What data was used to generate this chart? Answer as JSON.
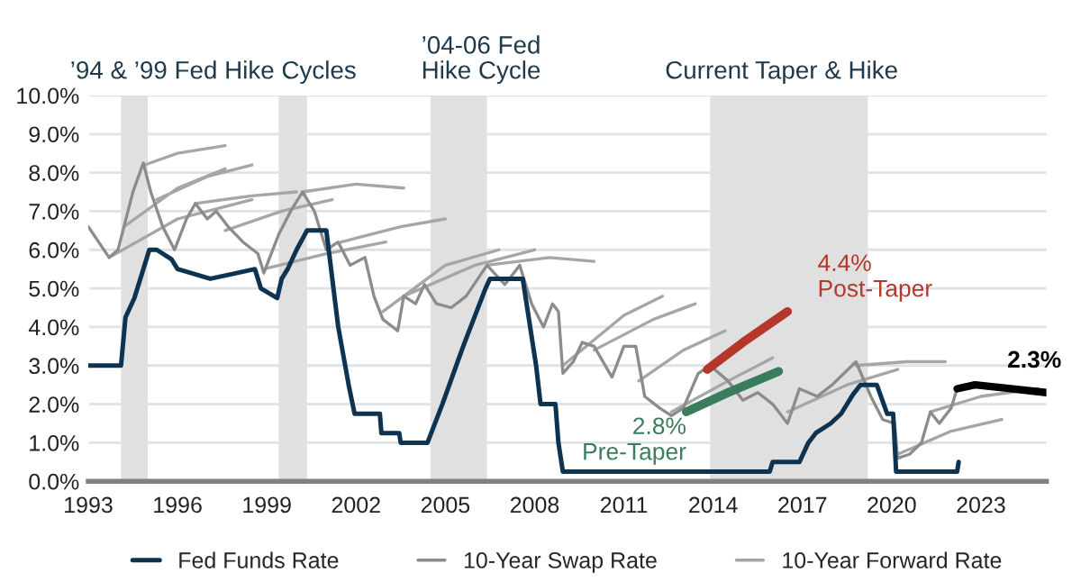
{
  "chart_data": {
    "type": "line",
    "xlim": [
      1993,
      2025.2
    ],
    "xticks": [
      1993,
      1996,
      1999,
      2002,
      2005,
      2008,
      2011,
      2014,
      2017,
      2020,
      2023
    ],
    "ylim": [
      0,
      10
    ],
    "yticks": [
      {
        "value": 0,
        "label": "0.0%"
      },
      {
        "value": 1,
        "label": "1.0%"
      },
      {
        "value": 2,
        "label": "2.0%"
      },
      {
        "value": 3,
        "label": "3.0%"
      },
      {
        "value": 4,
        "label": "4.0%"
      },
      {
        "value": 5,
        "label": "5.0%"
      },
      {
        "value": 6,
        "label": "6.0%"
      },
      {
        "value": 7,
        "label": "7.0%"
      },
      {
        "value": 8,
        "label": "8.0%"
      },
      {
        "value": 9,
        "label": "9.0%"
      },
      {
        "value": 10,
        "label": "10.0%"
      }
    ],
    "grid": "y",
    "legend": "bottom",
    "bands": [
      {
        "axis": "x",
        "from": 1994.1,
        "to": 1995.0,
        "color": "#e0e0e0"
      },
      {
        "axis": "x",
        "from": 1999.4,
        "to": 2000.35,
        "color": "#e0e0e0"
      },
      {
        "axis": "x",
        "from": 2004.5,
        "to": 2006.4,
        "color": "#e0e0e0"
      },
      {
        "axis": "x",
        "from": 2013.9,
        "to": 2019.2,
        "color": "#e0e0e0"
      }
    ],
    "annotations": [
      "’94 & ’99 Fed Hike Cycles",
      "’04-06 Fed\nHike Cycle",
      "Current Taper & Hike",
      {
        "text": "4.4%\nPost-Taper",
        "x": 2016.5,
        "y": 4.4
      },
      {
        "text": "2.8%\nPre-Taper",
        "x": 2013.1,
        "y": 1.8
      },
      {
        "text": "2.3%",
        "x": 2025.2,
        "y": 2.3
      }
    ],
    "series": [
      {
        "name": "Fed Funds Rate",
        "color": "#0d3351",
        "x": [
          1993.0,
          1994.1,
          1994.25,
          1994.55,
          1994.85,
          1995.05,
          1995.3,
          1995.8,
          1996.0,
          1997.1,
          1998.6,
          1998.8,
          1999.35,
          1999.5,
          1999.7,
          2000.0,
          2000.35,
          2001.0,
          2001.4,
          2001.75,
          2001.95,
          2002.8,
          2002.85,
          2003.45,
          2003.5,
          2004.4,
          2004.9,
          2005.6,
          2006.35,
          2006.5,
          2007.6,
          2008.05,
          2008.2,
          2008.7,
          2008.8,
          2008.95,
          2015.9,
          2016.0,
          2016.9,
          2017.2,
          2017.45,
          2017.95,
          2018.3,
          2018.7,
          2018.95,
          2019.5,
          2019.85,
          2020.05,
          2020.15,
          2022.2,
          2022.25
        ],
        "values": [
          3.0,
          3.0,
          4.25,
          4.75,
          5.5,
          6.0,
          6.0,
          5.75,
          5.5,
          5.25,
          5.5,
          5.0,
          4.75,
          5.25,
          5.5,
          6.0,
          6.5,
          6.5,
          4.0,
          2.5,
          1.75,
          1.75,
          1.25,
          1.25,
          1.0,
          1.0,
          2.0,
          3.5,
          5.0,
          5.25,
          5.25,
          3.0,
          2.0,
          2.0,
          1.0,
          0.25,
          0.25,
          0.5,
          0.5,
          1.0,
          1.25,
          1.5,
          1.75,
          2.25,
          2.5,
          2.5,
          1.75,
          1.75,
          0.25,
          0.25,
          0.5
        ]
      },
      {
        "name": "10-Year Swap Rate",
        "color": "#8c8c8c",
        "x": [
          1993.0,
          1993.7,
          1994.0,
          1994.5,
          1994.85,
          1995.1,
          1995.5,
          1995.9,
          1996.3,
          1996.6,
          1997.0,
          1997.3,
          1997.7,
          1998.2,
          1998.7,
          1998.9,
          1999.4,
          1999.8,
          2000.2,
          2000.6,
          2001.0,
          2001.4,
          2001.8,
          2002.3,
          2002.6,
          2002.9,
          2003.4,
          2003.6,
          2004.0,
          2004.3,
          2004.7,
          2005.2,
          2005.7,
          2006.4,
          2007.0,
          2007.5,
          2007.9,
          2008.3,
          2008.6,
          2008.8,
          2008.95,
          2009.3,
          2009.6,
          2010.0,
          2010.6,
          2011.0,
          2011.4,
          2011.7,
          2012.2,
          2012.6,
          2013.0,
          2013.5,
          2013.9,
          2014.5,
          2015.0,
          2015.5,
          2016.0,
          2016.5,
          2016.9,
          2017.5,
          2018.0,
          2018.8,
          2019.3,
          2019.7,
          2020.1,
          2020.2,
          2020.6,
          2021.0,
          2021.3,
          2021.6,
          2022.0,
          2022.2
        ],
        "values": [
          6.6,
          5.8,
          6.0,
          7.5,
          8.25,
          7.5,
          6.6,
          6.0,
          6.8,
          7.2,
          6.8,
          7.0,
          6.6,
          6.2,
          5.9,
          5.4,
          6.4,
          7.0,
          7.5,
          7.0,
          6.0,
          6.2,
          5.6,
          5.8,
          4.8,
          4.2,
          3.9,
          4.8,
          4.6,
          5.1,
          4.6,
          4.5,
          4.8,
          5.6,
          5.1,
          5.6,
          4.6,
          4.0,
          4.6,
          4.4,
          2.8,
          3.1,
          3.6,
          3.5,
          2.7,
          3.5,
          3.5,
          2.2,
          1.9,
          1.7,
          1.9,
          2.8,
          3.0,
          2.6,
          2.1,
          2.3,
          2.0,
          1.5,
          2.4,
          2.2,
          2.5,
          3.1,
          2.2,
          1.6,
          1.5,
          0.6,
          0.7,
          1.0,
          1.8,
          1.5,
          1.9,
          2.4
        ]
      },
      {
        "name": "10-Year Forward Rate",
        "color": "#a6a6a6",
        "x": [
          1993.7,
          1996,
          1998.5,
          null,
          1994.2,
          1996,
          1997.6,
          null,
          1994.9,
          1996,
          1997.6,
          null,
          1995.3,
          1997,
          1998.5,
          null,
          1996.6,
          1998.5,
          2000.0,
          null,
          1997.6,
          1999.5,
          2001.2,
          null,
          1998.9,
          2001,
          2003.0,
          null,
          2000.2,
          2002,
          2003.6,
          null,
          2001.5,
          2003.5,
          2005.0,
          null,
          2002.9,
          2005,
          2006.8,
          null,
          2003.6,
          2006,
          2008,
          null,
          2006.4,
          2008.5,
          2010,
          null,
          2008.95,
          2011,
          2012.3,
          null,
          2010.0,
          2012,
          2013.4,
          null,
          2011.5,
          2013,
          2014.4,
          null,
          2012.6,
          2014.5,
          2016.0,
          null,
          2016.5,
          2018.5,
          2020.2,
          null,
          2018.8,
          2020.5,
          2021.8,
          null,
          2020.2,
          2022,
          2023.7,
          null,
          2021.3,
          2023,
          2024.9
        ],
        "values": [
          5.8,
          6.8,
          7.3,
          null,
          6.6,
          7.6,
          8.1,
          null,
          8.2,
          8.5,
          8.7,
          null,
          7.3,
          7.9,
          8.2,
          null,
          7.2,
          7.4,
          7.5,
          null,
          6.5,
          7.0,
          7.3,
          null,
          5.5,
          5.9,
          6.2,
          null,
          7.5,
          7.7,
          7.6,
          null,
          6.2,
          6.6,
          6.8,
          null,
          4.4,
          5.6,
          6.0,
          null,
          4.8,
          5.6,
          6.0,
          null,
          5.6,
          5.8,
          5.7,
          null,
          3.0,
          4.3,
          4.8,
          null,
          3.4,
          4.2,
          4.6,
          null,
          2.6,
          3.4,
          3.9,
          null,
          1.8,
          2.6,
          3.2,
          null,
          1.8,
          2.5,
          2.9,
          null,
          3.0,
          3.1,
          3.1,
          null,
          0.7,
          1.3,
          1.6,
          null,
          1.8,
          2.2,
          2.4
        ]
      },
      {
        "color": "#3a7d5c",
        "x": [
          2013.1,
          2014.5,
          2016.2
        ],
        "values": [
          1.8,
          2.3,
          2.85
        ]
      },
      {
        "color": "#b5372c",
        "x": [
          2013.8,
          2015.0,
          2016.5
        ],
        "values": [
          2.9,
          3.6,
          4.4
        ]
      },
      {
        "color": "#000000",
        "x": [
          2022.2,
          2022.8,
          2024.0,
          2025.2
        ],
        "values": [
          2.4,
          2.5,
          2.4,
          2.3
        ]
      }
    ]
  }
}
